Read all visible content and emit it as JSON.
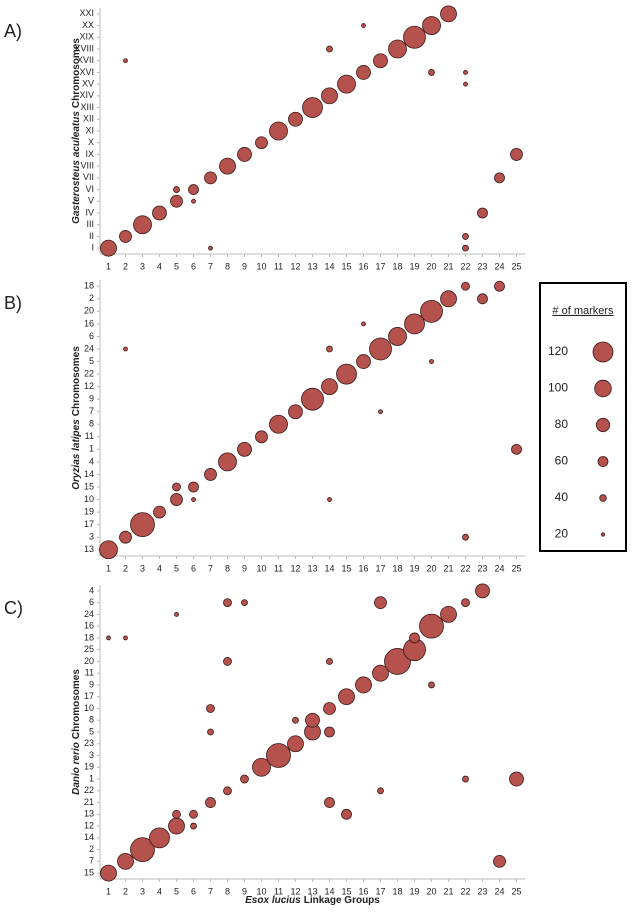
{
  "chart_data": [
    {
      "type": "scatter",
      "panel_label": "A)",
      "ylabel_species": "Gasterosteus aculeatus",
      "ylabel": "Chromosomes",
      "categories": [
        "I",
        "II",
        "III",
        "IV",
        "V",
        "VI",
        "VII",
        "VIII",
        "IX",
        "X",
        "XI",
        "XII",
        "XIII",
        "XIV",
        "XV",
        "XVI",
        "XVII",
        "XVIII",
        "XIX",
        "XX",
        "XXI"
      ],
      "xlim": [
        0.5,
        25.5
      ],
      "xticks": [
        1,
        2,
        3,
        4,
        5,
        6,
        7,
        8,
        9,
        10,
        11,
        12,
        13,
        14,
        15,
        16,
        17,
        18,
        19,
        20,
        21,
        22,
        23,
        24,
        25
      ],
      "color": "#b5524e",
      "x": [
        1,
        2,
        3,
        4,
        5,
        5,
        6,
        7,
        8,
        9,
        10,
        11,
        12,
        13,
        14,
        15,
        16,
        17,
        18,
        19,
        20,
        21,
        25,
        24,
        23,
        22,
        22,
        14,
        20,
        16,
        22,
        22,
        6,
        2,
        7
      ],
      "y": [
        "I",
        "II",
        "III",
        "IV",
        "V",
        "VI",
        "VI",
        "VII",
        "VIII",
        "IX",
        "X",
        "XI",
        "XII",
        "XIII",
        "XIV",
        "XV",
        "XVI",
        "XVII",
        "XVIII",
        "XIX",
        "XX",
        "XXI",
        "IX",
        "VII",
        "IV",
        "II",
        "I",
        "XVIII",
        "XVI",
        "XX",
        "XVI",
        "XV",
        "V",
        "XVII",
        "I"
      ],
      "sizes": [
        96,
        72,
        108,
        84,
        72,
        36,
        60,
        72,
        96,
        84,
        72,
        108,
        84,
        120,
        96,
        108,
        84,
        84,
        108,
        132,
        108,
        96,
        72,
        60,
        60,
        36,
        36,
        36,
        36,
        24,
        24,
        24,
        24,
        24,
        24
      ]
    },
    {
      "type": "scatter",
      "panel_label": "B)",
      "ylabel_species": "Oryzias latipes",
      "ylabel": "Chromosomes",
      "categories": [
        "13",
        "3",
        "17",
        "19",
        "10",
        "15",
        "14",
        "4",
        "1",
        "11",
        "8",
        "7",
        "9",
        "12",
        "22",
        "5",
        "24",
        "6",
        "16",
        "20",
        "2",
        "18"
      ],
      "xlim": [
        0.5,
        25.5
      ],
      "xticks": [
        1,
        2,
        3,
        4,
        5,
        6,
        7,
        8,
        9,
        10,
        11,
        12,
        13,
        14,
        15,
        16,
        17,
        18,
        19,
        20,
        21,
        22,
        23,
        24,
        25
      ],
      "color": "#b5524e",
      "x": [
        1,
        2,
        3,
        4,
        5,
        5,
        6,
        6,
        7,
        8,
        9,
        10,
        11,
        12,
        13,
        14,
        15,
        16,
        17,
        18,
        19,
        20,
        21,
        22,
        23,
        24,
        25,
        14,
        16,
        22,
        20,
        14,
        2,
        17
      ],
      "y": [
        "13",
        "3",
        "17",
        "19",
        "10",
        "15",
        "15",
        "10",
        "14",
        "4",
        "1",
        "11",
        "8",
        "7",
        "9",
        "12",
        "22",
        "5",
        "24",
        "6",
        "16",
        "20",
        "2",
        "18",
        "2",
        "18",
        "1",
        "24",
        "16",
        "3",
        "5",
        "10",
        "24",
        "7"
      ],
      "sizes": [
        108,
        72,
        144,
        72,
        72,
        48,
        60,
        24,
        72,
        108,
        84,
        72,
        108,
        84,
        132,
        96,
        120,
        84,
        132,
        108,
        120,
        132,
        96,
        48,
        60,
        60,
        60,
        36,
        24,
        36,
        24,
        24,
        24,
        24
      ]
    },
    {
      "type": "scatter",
      "panel_label": "C)",
      "ylabel_species": "Danio rerio",
      "ylabel": "Chromosomes",
      "xlabel_species": "Esox lucius",
      "xlabel": "Linkage Groups",
      "categories": [
        "15",
        "7",
        "2",
        "14",
        "12",
        "13",
        "21",
        "22",
        "1",
        "19",
        "3",
        "23",
        "5",
        "8",
        "10",
        "17",
        "9",
        "11",
        "20",
        "25",
        "18",
        "16",
        "24",
        "6",
        "4"
      ],
      "xlim": [
        0.5,
        25.5
      ],
      "xticks": [
        1,
        2,
        3,
        4,
        5,
        6,
        7,
        8,
        9,
        10,
        11,
        12,
        13,
        14,
        15,
        16,
        17,
        18,
        19,
        20,
        21,
        22,
        23,
        24,
        25
      ],
      "color": "#b5524e",
      "x": [
        1,
        2,
        3,
        4,
        5,
        5,
        6,
        6,
        7,
        8,
        9,
        10,
        11,
        12,
        13,
        13,
        14,
        15,
        16,
        17,
        18,
        19,
        19,
        20,
        21,
        22,
        23,
        25,
        24,
        17,
        8,
        9,
        8,
        7,
        7,
        14,
        15,
        14,
        14,
        12,
        22,
        17,
        20,
        1,
        2,
        5
      ],
      "y": [
        "15",
        "7",
        "2",
        "14",
        "12",
        "13",
        "13",
        "12",
        "21",
        "22",
        "1",
        "19",
        "3",
        "23",
        "5",
        "8",
        "10",
        "17",
        "9",
        "11",
        "20",
        "25",
        "18",
        "16",
        "24",
        "6",
        "4",
        "1",
        "7",
        "6",
        "6",
        "6",
        "20",
        "10",
        "5",
        "21",
        "13",
        "20",
        "5",
        "8",
        "1",
        "22",
        "9",
        "18",
        "18",
        "24"
      ],
      "sizes": [
        96,
        96,
        144,
        120,
        96,
        48,
        48,
        36,
        60,
        48,
        48,
        108,
        144,
        96,
        96,
        84,
        72,
        96,
        96,
        96,
        156,
        132,
        60,
        144,
        96,
        48,
        84,
        84,
        72,
        72,
        48,
        36,
        48,
        48,
        36,
        60,
        60,
        36,
        60,
        36,
        36,
        36,
        36,
        24,
        24,
        24
      ]
    }
  ],
  "size_legend": {
    "title": "# of markers",
    "values": [
      120,
      100,
      80,
      60,
      40,
      20
    ]
  }
}
